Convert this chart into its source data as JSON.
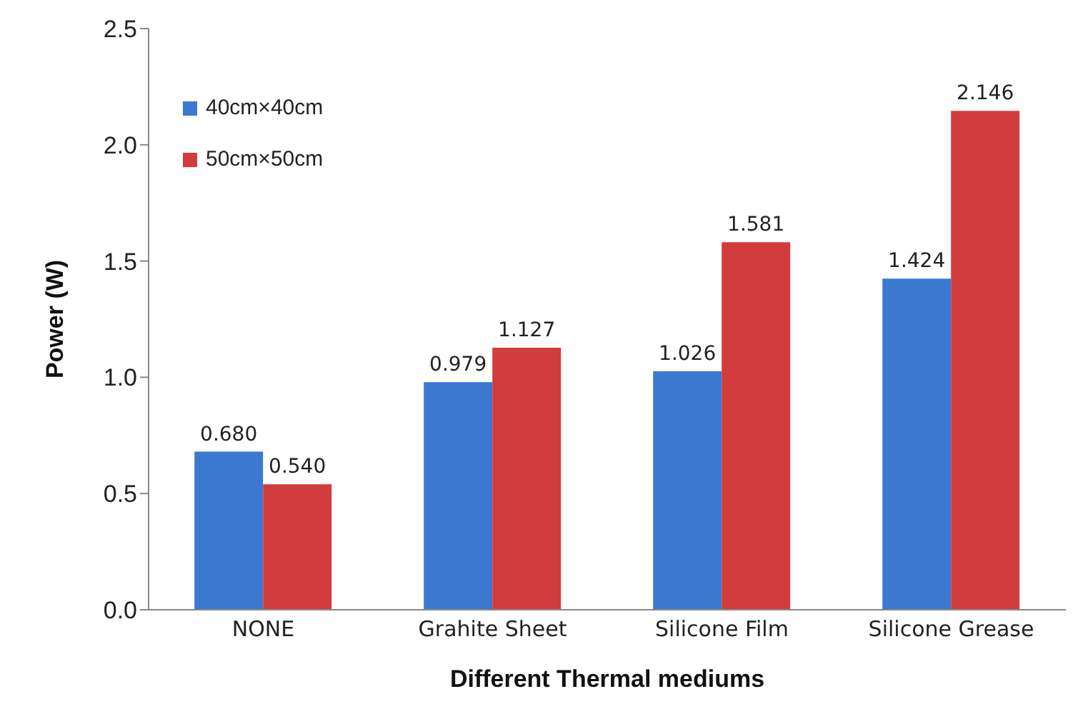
{
  "chart_data": {
    "type": "bar",
    "xlabel": "Different Thermal mediums",
    "ylabel": "Power (W)",
    "categories": [
      "NONE",
      "Grahite Sheet",
      "Silicone Film",
      "Silicone Grease"
    ],
    "series": [
      {
        "name": "40cm×40cm",
        "color": "#3b78d0",
        "values": [
          0.68,
          0.979,
          1.026,
          1.424
        ],
        "value_labels": [
          "0.680",
          "0.979",
          "1.026",
          "1.424"
        ]
      },
      {
        "name": "50cm×50cm",
        "color": "#d23c3c",
        "values": [
          0.54,
          1.127,
          1.581,
          2.146
        ],
        "value_labels": [
          "0.540",
          "1.127",
          "1.581",
          "2.146"
        ]
      }
    ],
    "ylim": [
      0,
      2.5
    ],
    "yticks": [
      {
        "value": 0,
        "label": "0.0"
      },
      0.5,
      {
        "value": 1,
        "label": "1.0"
      },
      1.5,
      {
        "value": 2,
        "label": "2.0"
      },
      2.5
    ],
    "legend": "top left",
    "grid": false
  }
}
